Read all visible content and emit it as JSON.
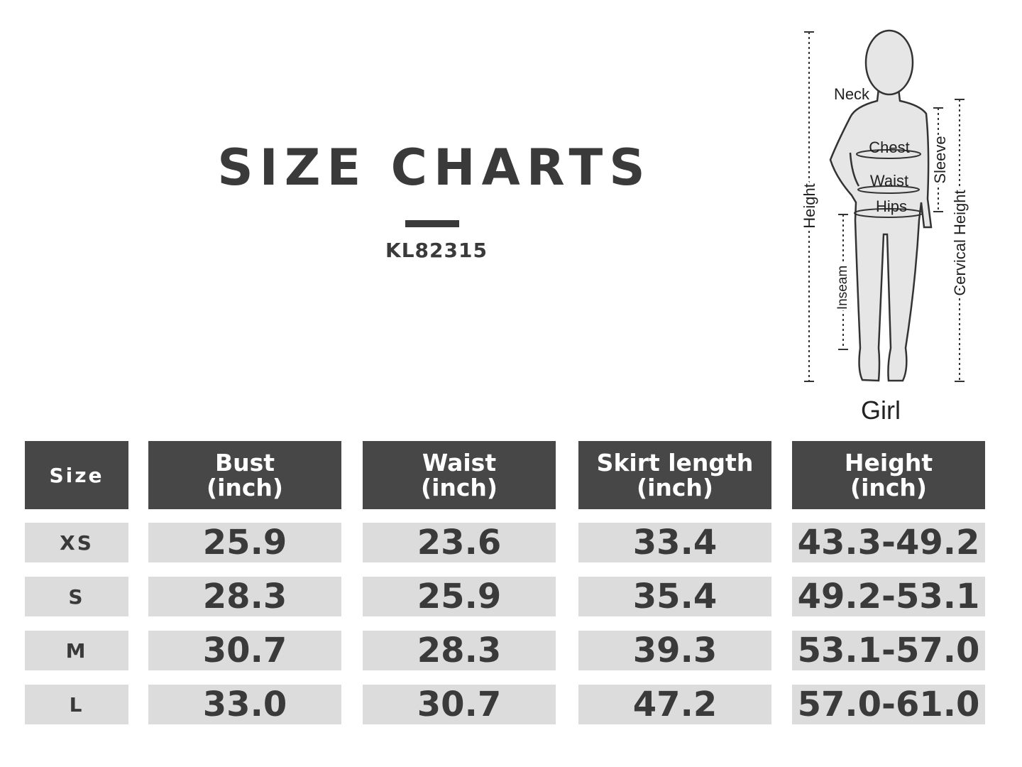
{
  "header": {
    "title": "SIZE CHARTS",
    "code": "KL82315"
  },
  "figure": {
    "labels": {
      "neck": "Neck",
      "chest": "Chest",
      "waist": "Waist",
      "hips": "Hips",
      "height": "Height",
      "sleeve": "Sleeve",
      "inseam": "Inseam",
      "cervical_height": "Cervical Height"
    },
    "caption": "Girl"
  },
  "table": {
    "columns": [
      {
        "name": "Size"
      },
      {
        "name": "Bust",
        "unit": "(inch)"
      },
      {
        "name": "Waist",
        "unit": "(inch)"
      },
      {
        "name": "Skirt length",
        "unit": "(inch)"
      },
      {
        "name": "Height",
        "unit": "(inch)"
      }
    ],
    "rows": [
      [
        "XS",
        "25.9",
        "23.6",
        "33.4",
        "43.3-49.2"
      ],
      [
        "S",
        "28.3",
        "25.9",
        "35.4",
        "49.2-53.1"
      ],
      [
        "M",
        "30.7",
        "28.3",
        "39.3",
        "53.1-57.0"
      ],
      [
        "L",
        "33.0",
        "30.7",
        "47.2",
        "57.0-61.0"
      ]
    ]
  }
}
